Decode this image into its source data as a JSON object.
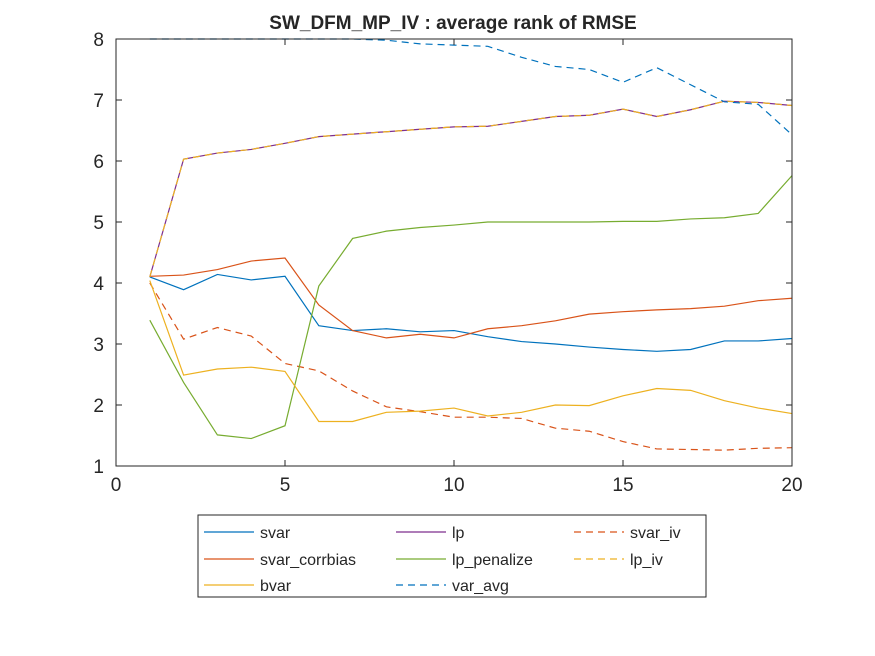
{
  "chart_data": {
    "type": "line",
    "title": "SW_DFM_MP_IV : average rank of RMSE",
    "xlabel": "",
    "ylabel": "",
    "xlim": [
      0,
      20
    ],
    "ylim": [
      1,
      8
    ],
    "xticks": [
      0,
      5,
      10,
      15,
      20
    ],
    "yticks": [
      1,
      2,
      3,
      4,
      5,
      6,
      7,
      8
    ],
    "xtick_labels": [
      "0",
      "5",
      "10",
      "15",
      "20"
    ],
    "ytick_labels": [
      "1",
      "2",
      "3",
      "4",
      "5",
      "6",
      "7",
      "8"
    ],
    "grid": false,
    "legend_placement": "bottom-outside",
    "x": [
      1,
      2,
      3,
      4,
      5,
      6,
      7,
      8,
      9,
      10,
      11,
      12,
      13,
      14,
      15,
      16,
      17,
      18,
      19,
      20
    ],
    "series": [
      {
        "name": "svar",
        "color": "#0072BD",
        "dash": "solid",
        "values": [
          4.1,
          3.89,
          4.14,
          4.05,
          4.11,
          3.3,
          3.22,
          3.25,
          3.2,
          3.22,
          3.12,
          3.04,
          3.0,
          2.95,
          2.91,
          2.88,
          2.91,
          3.05,
          3.05,
          3.09
        ]
      },
      {
        "name": "lp",
        "color": "#7E2F8E",
        "dash": "solid",
        "values": [
          4.1,
          6.03,
          6.13,
          6.19,
          6.29,
          6.4,
          6.44,
          6.48,
          6.52,
          6.56,
          6.57,
          6.65,
          6.73,
          6.75,
          6.85,
          6.73,
          6.84,
          6.98,
          6.96,
          6.91
        ]
      },
      {
        "name": "svar_iv",
        "color": "#D95319",
        "dash": "dashed",
        "values": [
          4.0,
          3.08,
          3.27,
          3.13,
          2.68,
          2.56,
          2.23,
          1.97,
          1.89,
          1.8,
          1.8,
          1.78,
          1.62,
          1.57,
          1.4,
          1.28,
          1.27,
          1.26,
          1.29,
          1.3
        ]
      },
      {
        "name": "svar_corrbias",
        "color": "#D95319",
        "dash": "solid",
        "values": [
          4.11,
          4.13,
          4.22,
          4.36,
          4.41,
          3.64,
          3.22,
          3.1,
          3.16,
          3.1,
          3.25,
          3.3,
          3.38,
          3.49,
          3.53,
          3.56,
          3.58,
          3.62,
          3.71,
          3.75
        ]
      },
      {
        "name": "lp_penalize",
        "color": "#77AC30",
        "dash": "solid",
        "values": [
          3.39,
          2.37,
          1.51,
          1.45,
          1.66,
          3.95,
          4.73,
          4.85,
          4.91,
          4.95,
          5.0,
          5.0,
          5.0,
          5.0,
          5.01,
          5.01,
          5.05,
          5.07,
          5.14,
          5.76
        ]
      },
      {
        "name": "lp_iv",
        "color": "#EDB120",
        "dash": "dashed",
        "values": [
          4.1,
          6.03,
          6.13,
          6.19,
          6.29,
          6.4,
          6.44,
          6.48,
          6.52,
          6.56,
          6.57,
          6.65,
          6.73,
          6.75,
          6.85,
          6.73,
          6.84,
          6.98,
          6.96,
          6.91
        ]
      },
      {
        "name": "bvar",
        "color": "#EDB120",
        "dash": "solid",
        "values": [
          4.04,
          2.49,
          2.59,
          2.62,
          2.55,
          1.73,
          1.73,
          1.88,
          1.9,
          1.95,
          1.82,
          1.88,
          2.0,
          1.99,
          2.15,
          2.27,
          2.24,
          2.07,
          1.95,
          1.86
        ]
      },
      {
        "name": "var_avg",
        "color": "#0072BD",
        "dash": "dashed",
        "values": [
          8.0,
          8.0,
          8.0,
          8.0,
          8.0,
          8.0,
          8.0,
          7.98,
          7.92,
          7.9,
          7.88,
          7.7,
          7.55,
          7.5,
          7.29,
          7.53,
          7.25,
          6.97,
          6.93,
          6.43
        ]
      }
    ],
    "legend": {
      "columns": [
        [
          "svar",
          "svar_corrbias",
          "bvar"
        ],
        [
          "lp",
          "lp_penalize",
          "var_avg"
        ],
        [
          "svar_iv",
          "lp_iv"
        ]
      ]
    }
  }
}
